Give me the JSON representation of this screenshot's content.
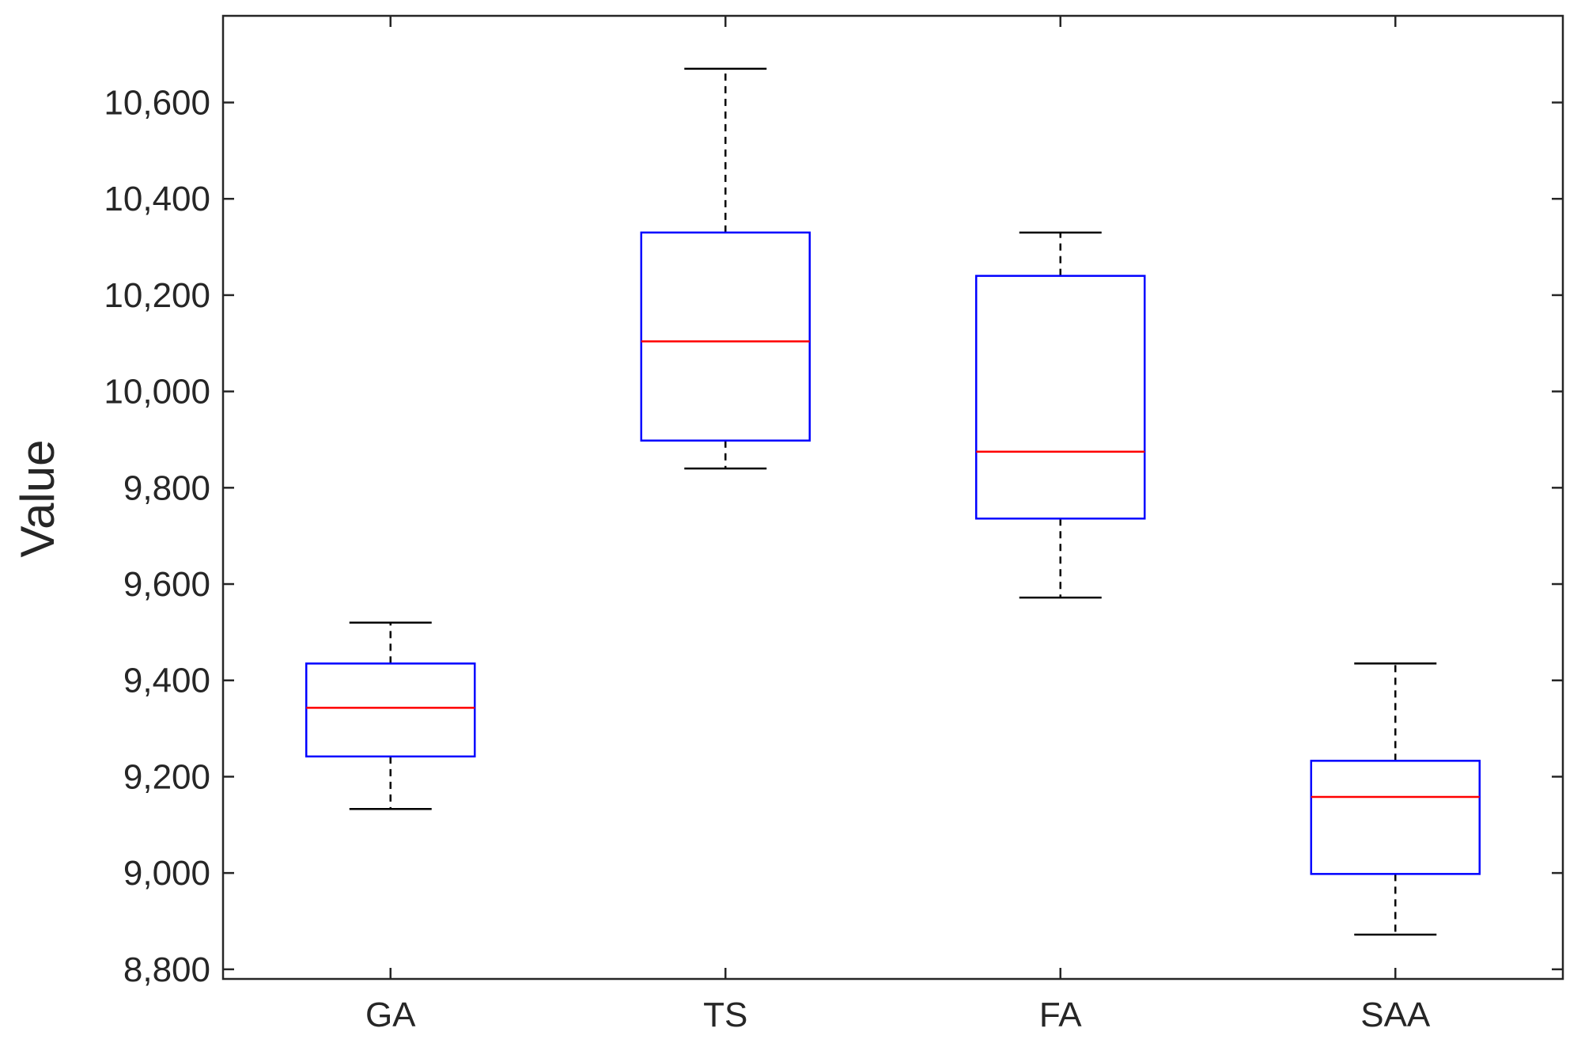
{
  "chart_data": {
    "type": "boxplot",
    "title": "",
    "xlabel": "",
    "ylabel": "Value",
    "ylim": [
      8780,
      10780
    ],
    "yticks": [
      8800,
      9000,
      9200,
      9400,
      9600,
      9800,
      10000,
      10200,
      10400,
      10600
    ],
    "ytick_labels": [
      "8,800",
      "9,000",
      "9,200",
      "9,400",
      "9,600",
      "9,800",
      "10,000",
      "10,200",
      "10,400",
      "10,600"
    ],
    "categories": [
      "GA",
      "TS",
      "FA",
      "SAA"
    ],
    "boxes": [
      {
        "label": "GA",
        "whisker_low": 9133,
        "q1": 9242,
        "median": 9343,
        "q3": 9435,
        "whisker_high": 9520
      },
      {
        "label": "TS",
        "whisker_low": 9840,
        "q1": 9898,
        "median": 10104,
        "q3": 10330,
        "whisker_high": 10670
      },
      {
        "label": "FA",
        "whisker_low": 9572,
        "q1": 9736,
        "median": 9875,
        "q3": 10240,
        "whisker_high": 10330
      },
      {
        "label": "SAA",
        "whisker_low": 8872,
        "q1": 8998,
        "median": 9158,
        "q3": 9233,
        "whisker_high": 9435
      }
    ],
    "colors": {
      "box": "#0000ff",
      "median": "#ff0000",
      "whisker": "#000000",
      "axis": "#262626"
    },
    "grid": false
  }
}
